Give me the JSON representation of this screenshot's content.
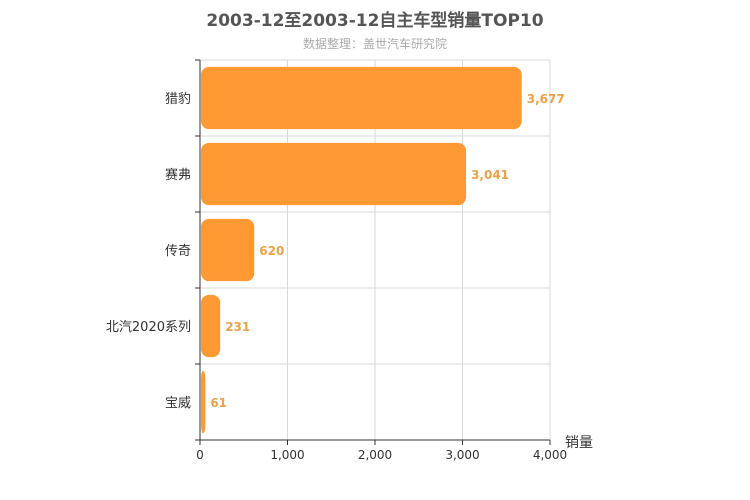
{
  "title": "2003-12至2003-12自主车型销量TOP10",
  "subtitle": "数据整理：盖世汽车研究院",
  "colors": {
    "bar": "#ff9933",
    "value_label": "#e8a24a",
    "grid": "#d9d9d9",
    "axis": "#333333"
  },
  "chart_data": {
    "type": "bar",
    "orientation": "horizontal",
    "title": "2003-12至2003-12自主车型销量TOP10",
    "xlabel": "销量",
    "ylabel": "",
    "categories": [
      "猎豹",
      "赛弗",
      "传奇",
      "北汽2020系列",
      "宝威"
    ],
    "values": [
      3677,
      3041,
      620,
      231,
      61
    ],
    "value_labels": [
      "3,677",
      "3,041",
      "620",
      "231",
      "61"
    ],
    "xlim": [
      0,
      4000
    ],
    "xticks": [
      0,
      1000,
      2000,
      3000,
      4000
    ],
    "xtick_labels": [
      "0",
      "1,000",
      "2,000",
      "3,000",
      "4,000"
    ],
    "grid": true
  }
}
